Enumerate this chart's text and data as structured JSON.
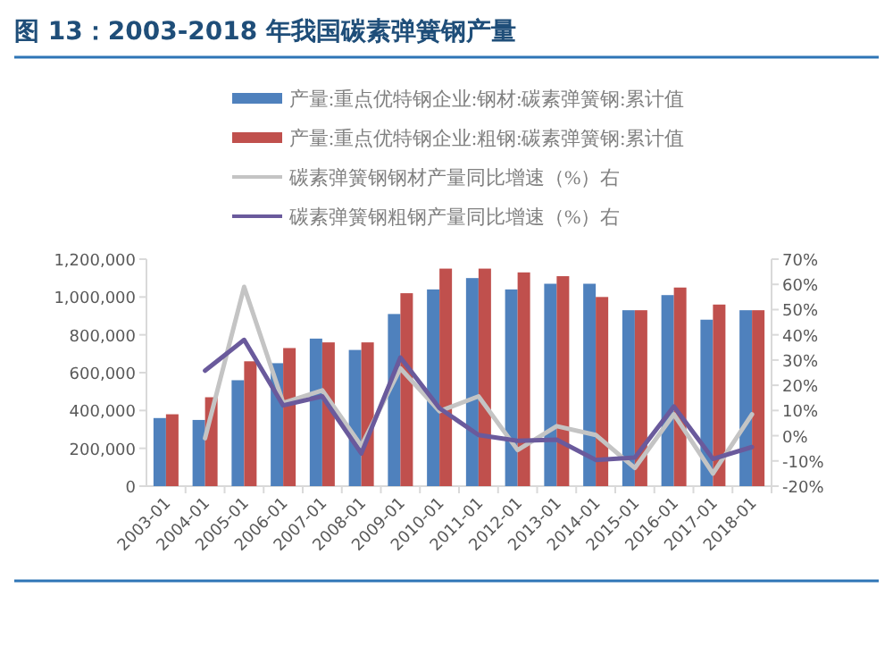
{
  "chart_data": {
    "type": "bar",
    "title": "图 13：2003-2018 年我国碳素弹簧钢产量",
    "categories": [
      "2003-01",
      "2004-01",
      "2005-01",
      "2006-01",
      "2007-01",
      "2008-01",
      "2009-01",
      "2010-01",
      "2011-01",
      "2012-01",
      "2013-01",
      "2014-01",
      "2015-01",
      "2016-01",
      "2017-01",
      "2018-01"
    ],
    "series": [
      {
        "name": "产量:重点优特钢企业:钢材:碳素弹簧钢:累计值",
        "color": "#4f81bd",
        "values": [
          360000,
          350000,
          560000,
          650000,
          780000,
          720000,
          910000,
          1040000,
          1100000,
          1040000,
          1070000,
          1070000,
          930000,
          1010000,
          880000,
          930000
        ]
      },
      {
        "name": "产量:重点优特钢企业:粗钢:碳素弹簧钢:累计值",
        "color": "#c0504d",
        "values": [
          380000,
          470000,
          660000,
          730000,
          760000,
          760000,
          1020000,
          1150000,
          1150000,
          1130000,
          1110000,
          1000000,
          930000,
          1050000,
          960000,
          930000
        ]
      },
      {
        "name": "碳素弹簧钢钢材产量同比增速（%）右",
        "type": "line",
        "axis": "y2",
        "color": "#c4c4c4",
        "values": [
          null,
          -1,
          59,
          13,
          18,
          -4,
          26.7,
          9.7,
          15.6,
          -5.7,
          3.8,
          0.3,
          -12.8,
          8.5,
          -15,
          8.5
        ]
      },
      {
        "name": "碳素弹簧钢粗钢产量同比增速（%）右",
        "type": "line",
        "axis": "y2",
        "color": "#6a5a9c",
        "values": [
          null,
          25.8,
          38,
          12,
          15.6,
          -7,
          31,
          10.9,
          0.3,
          -2,
          -1.6,
          -9.6,
          -8.7,
          11.6,
          -9.2,
          -4.5
        ]
      }
    ],
    "ylim": [
      0,
      1200000
    ],
    "yticks": [
      0,
      {
        "value": 200000,
        "label": "200,000"
      },
      {
        "value": 400000,
        "label": "400,000"
      },
      {
        "value": 600000,
        "label": "600,000"
      },
      {
        "value": 800000,
        "label": "800,000"
      },
      {
        "value": 1000000,
        "label": "1,000,000"
      },
      {
        "value": 1200000,
        "label": "1,200,000"
      }
    ],
    "y2lim": [
      -20,
      70
    ],
    "y2ticks": [
      {
        "value": -20,
        "label": "-20%"
      },
      {
        "value": -10,
        "label": "-10%"
      },
      {
        "value": 0,
        "label": "0%"
      },
      {
        "value": 10,
        "label": "10%"
      },
      {
        "value": 20,
        "label": "20%"
      },
      {
        "value": 30,
        "label": "30%"
      },
      {
        "value": 40,
        "label": "40%"
      },
      {
        "value": 50,
        "label": "50%"
      },
      {
        "value": 60,
        "label": "60%"
      },
      {
        "value": 70,
        "label": "70%"
      }
    ],
    "legend": "top",
    "line_style": "solid"
  }
}
